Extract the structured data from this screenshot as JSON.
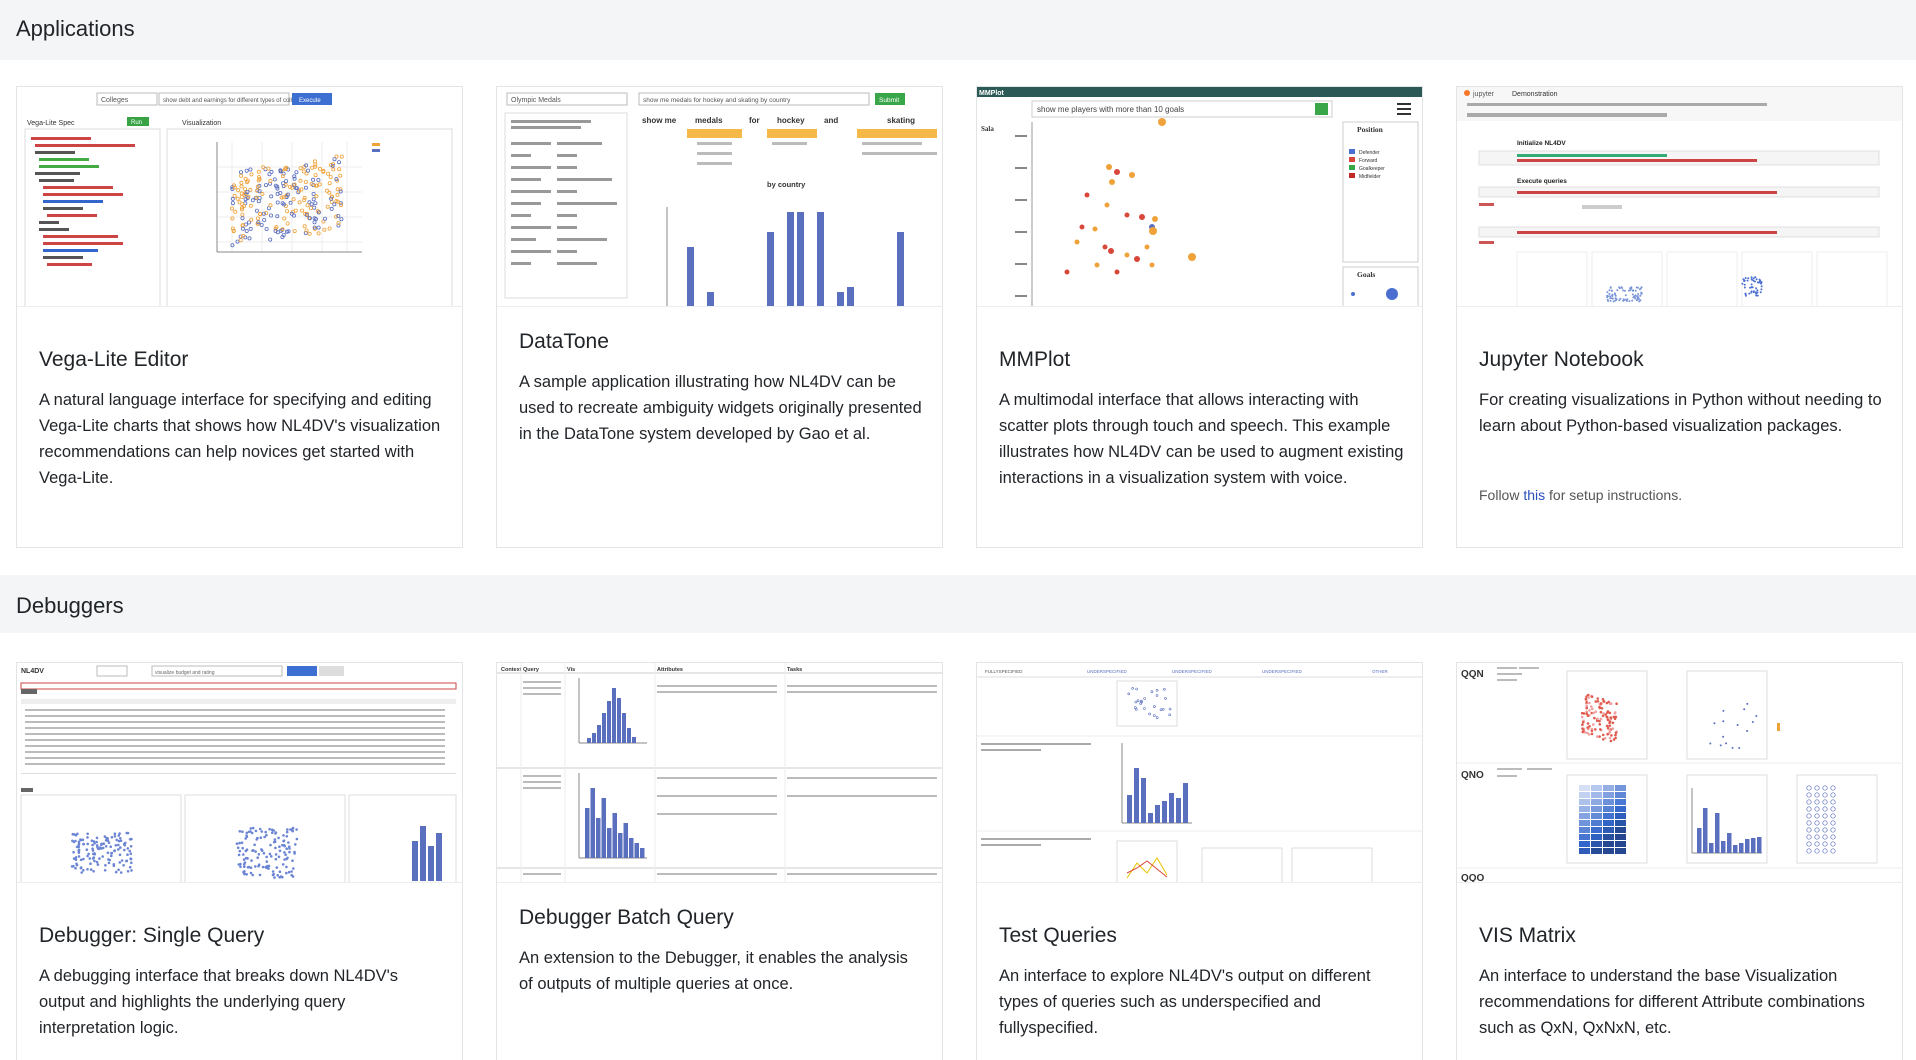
{
  "sections": {
    "applications": "Applications",
    "debuggers": "Debuggers"
  },
  "applications": [
    {
      "title": "Vega-Lite Editor",
      "description": "A natural language interface for specifying and editing Vega-Lite charts that shows how NL4DV's visualization recommendations can help novices get started with Vega-Lite.",
      "thumbnail": {
        "dropdown": "Colleges",
        "query": "show debt and earnings for different types of colleges",
        "button": "Execute",
        "panel_left": "Vega-Lite Spec",
        "panel_right": "Visualization",
        "run": "Run"
      }
    },
    {
      "title": "DataTone",
      "description": "A sample application illustrating how NL4DV can be used to recreate ambiguity widgets originally presented in the DataTone system developed by Gao et al.",
      "thumbnail": {
        "dropdown": "Olympic Medals",
        "query": "show me medals for hockey and skating by country",
        "button": "Submit",
        "words": [
          "show me",
          "medals",
          "for",
          "hockey",
          "and",
          "skating"
        ],
        "by_country": "by country"
      }
    },
    {
      "title": "MMPlot",
      "description": "A multimodal interface that allows interacting with scatter plots through touch and speech. This example illustrates how NL4DV can be used to augment existing interactions in a visualization system with voice.",
      "thumbnail": {
        "app": "MMPlot",
        "query": "show me players with more than 10 goals",
        "axis": "Sala",
        "legend_title": "Position",
        "legend": [
          "Defender",
          "Forward",
          "Goalkeeper",
          "Midfielder"
        ],
        "size_title": "Goals"
      }
    },
    {
      "title": "Jupyter Notebook",
      "description": "For creating visualizations in Python without needing to learn about Python-based visualization packages.",
      "note_prefix": "Follow ",
      "note_link": "this",
      "note_suffix": " for setup instructions.",
      "thumbnail": {
        "app": "jupyter",
        "notebook": "Demonstration",
        "h1": "Initialize NL4DV",
        "h2": "Execute queries"
      }
    }
  ],
  "debuggers": [
    {
      "title": "Debugger: Single Query",
      "description": "A debugging interface that breaks down NL4DV's output and highlights the underlying query interpretation logic.",
      "thumbnail": {
        "app": "NL4DV",
        "query": "visualize budget and rating"
      }
    },
    {
      "title": "Debugger Batch Query",
      "description": "An extension to the Debugger, it enables the analysis of outputs of multiple queries at once.",
      "thumbnail": {
        "columns": [
          "Context",
          "Query",
          "Vis",
          "Attributes",
          "Tasks"
        ]
      }
    },
    {
      "title": "Test Queries",
      "description": "An interface to explore NL4DV's output on different types of queries such as underspecified and fullyspecified.",
      "thumbnail": {
        "tabs": [
          "FULLYSPECIFIED",
          "UNDERSPECIFIED",
          "UNDERSPECIFIED",
          "UNDERSPECIFIED",
          "OTHER"
        ]
      }
    },
    {
      "title": "VIS Matrix",
      "description": "An interface to understand the base Visualization recommendations for different Attribute combinations such as QxN, QxNxN, etc.",
      "thumbnail": {
        "rows": [
          "QQN",
          "QNO",
          "QQO"
        ]
      }
    }
  ],
  "colors": {
    "accent_blue": "#5b6fbf",
    "orange": "#f0a23a",
    "red": "#d9473a",
    "green": "#3aa64a",
    "link": "#2a4fbf"
  }
}
